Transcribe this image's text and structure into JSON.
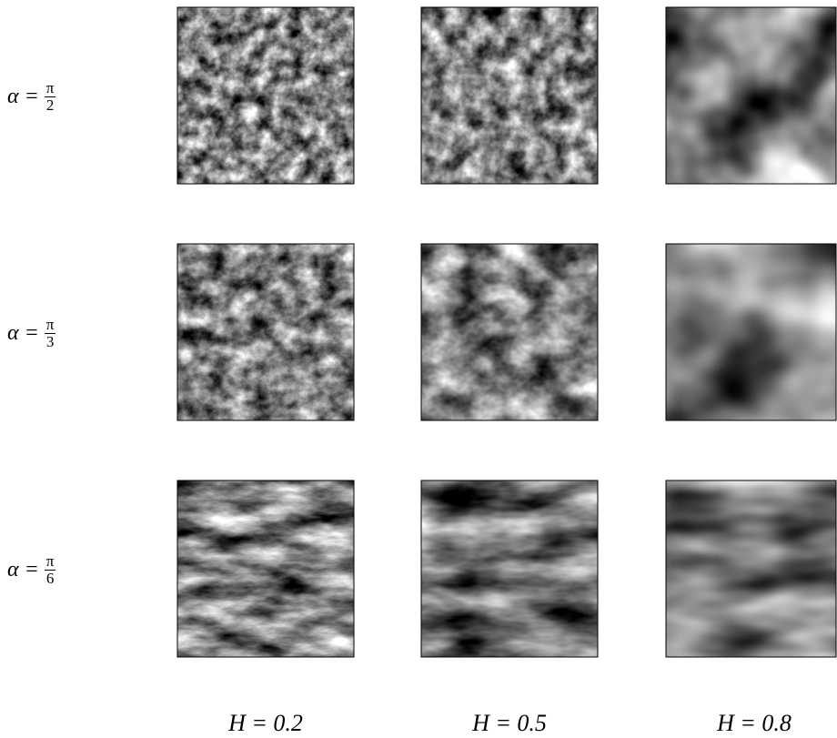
{
  "rows": [
    {
      "lhs": "α =",
      "numerator": "π",
      "denominator": "2"
    },
    {
      "lhs": "α =",
      "numerator": "π",
      "denominator": "3"
    },
    {
      "lhs": "α =",
      "numerator": "π",
      "denominator": "6"
    }
  ],
  "columns": [
    "H = 0.2",
    "H = 0.5",
    "H = 0.8"
  ]
}
